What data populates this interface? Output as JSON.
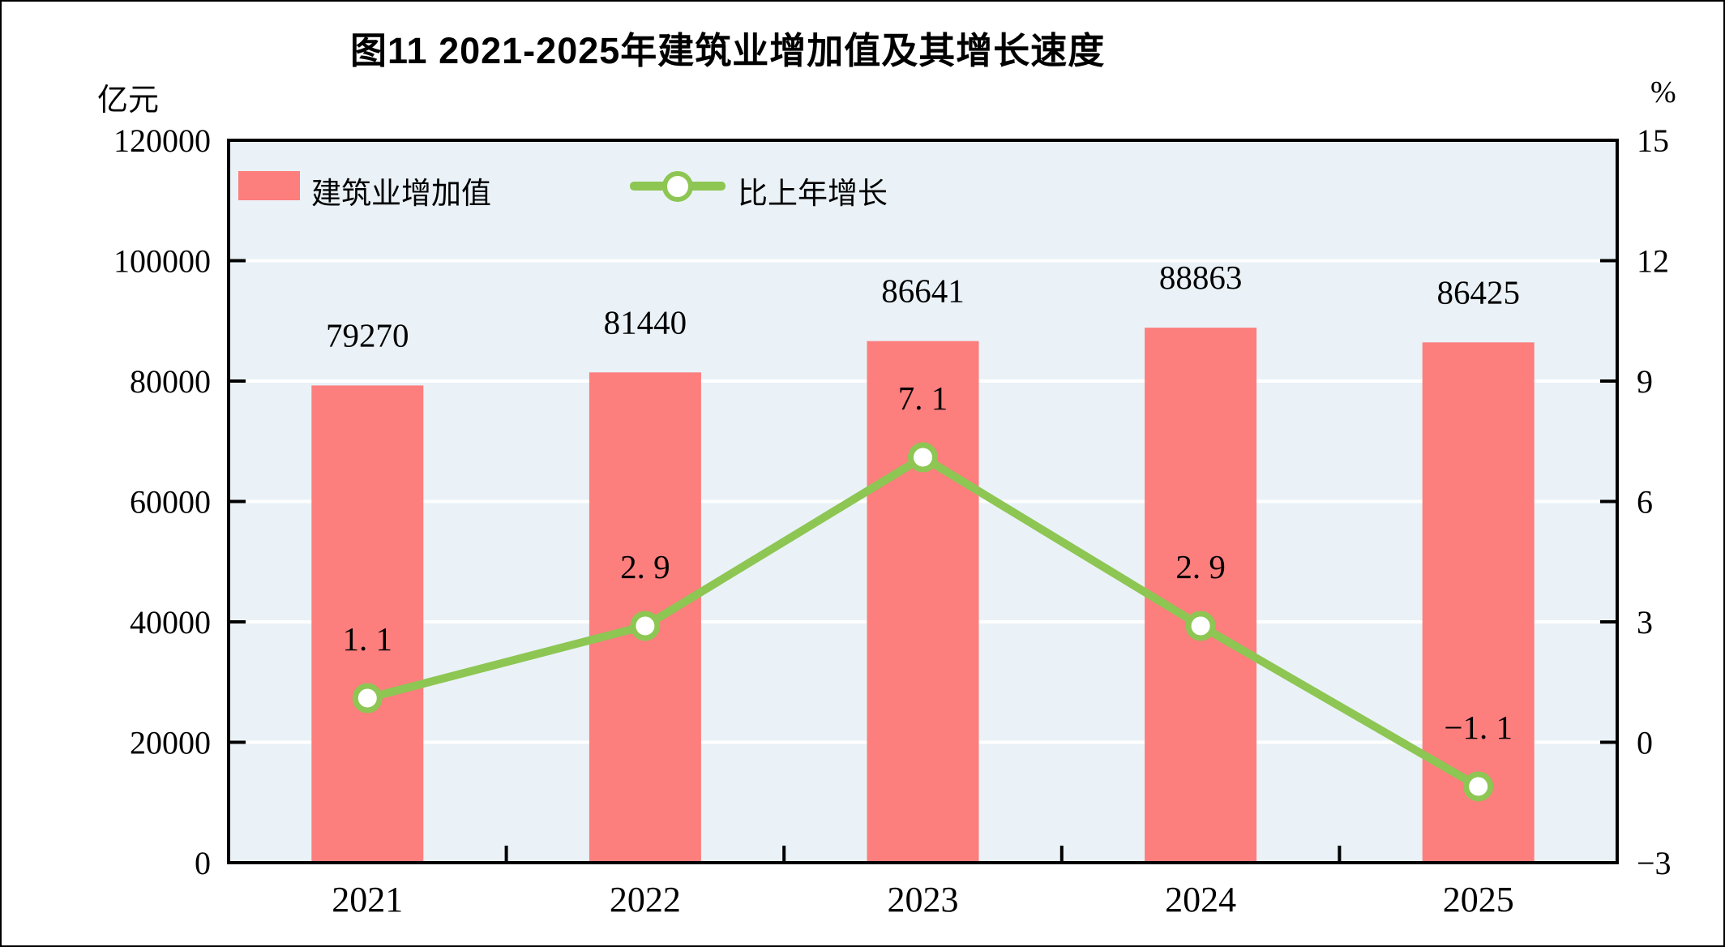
{
  "header": {
    "title": "图11  2021-2025年建筑业增加值及其增长速度",
    "left_unit": "亿元",
    "right_unit": "%"
  },
  "legend": {
    "items": [
      {
        "label": "建筑业增加值",
        "swatch": "bar",
        "color": "#FC7E7D"
      },
      {
        "label": "比上年增长",
        "swatch": "line-marker",
        "color": "#8DC653"
      }
    ]
  },
  "chart_data": {
    "type": "bar+line",
    "categories": [
      "2021",
      "2022",
      "2023",
      "2024",
      "2025"
    ],
    "series": [
      {
        "name": "建筑业增加值",
        "type": "bar",
        "axis": "left",
        "color": "#FC7E7D",
        "values": [
          79270,
          81440,
          86641,
          88863,
          86425
        ],
        "value_labels": [
          "79270",
          "81440",
          "86641",
          "88863",
          "86425"
        ]
      },
      {
        "name": "比上年增长",
        "type": "line",
        "axis": "right",
        "color": "#8DC653",
        "marker": "circle-white-fill-green-ring",
        "values": [
          1.1,
          2.9,
          7.1,
          2.9,
          -1.1
        ],
        "value_labels": [
          "1.1",
          "2.9",
          "7.1",
          "2.9",
          "−1.1"
        ]
      }
    ],
    "left_axis": {
      "title": "亿元",
      "min": 0,
      "max": 120000,
      "step": 20000,
      "tick_labels": [
        "120000",
        "100000",
        "80000",
        "60000",
        "40000",
        "20000",
        "0"
      ]
    },
    "right_axis": {
      "title": "%",
      "min": -3,
      "max": 15,
      "step": 3,
      "tick_labels": [
        "15",
        "12",
        "9",
        "6",
        "3",
        "0",
        "−3"
      ]
    },
    "grid": "horizontal-white-lines",
    "plot_background": "#EAF2F7",
    "axis_color": "#000000",
    "legend_position": "top-left-inside"
  }
}
